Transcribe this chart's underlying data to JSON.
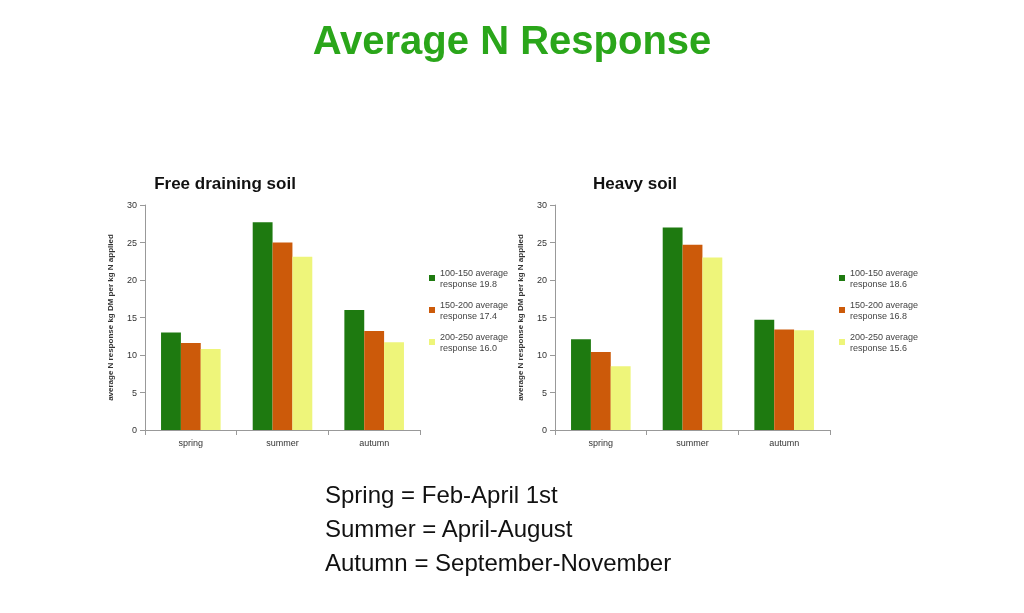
{
  "chart_data": [
    {
      "type": "other",
      "title": "Average N Response",
      "annotations": [
        "Spring = Feb-April 1st",
        "Summer = April-August",
        "Autumn = September-November"
      ]
    },
    {
      "type": "bar",
      "title": "Free draining soil",
      "ylabel": "average N response kg DM per kg N applied",
      "categories": [
        "spring",
        "summer",
        "autumn"
      ],
      "series": [
        {
          "name": "100-150 average response 19.8",
          "color": "#1e7a10",
          "values": [
            13.0,
            27.7,
            16.0
          ]
        },
        {
          "name": "150-200 average response 17.4",
          "color": "#cc5a0a",
          "values": [
            11.6,
            25.0,
            13.2
          ]
        },
        {
          "name": "200-250 average response 16.0",
          "color": "#eef57a",
          "values": [
            10.8,
            23.1,
            11.7
          ]
        }
      ],
      "ylim": [
        0,
        30
      ],
      "yticks": [
        0,
        5,
        10,
        15,
        20,
        25,
        30
      ],
      "grid": false,
      "legend": "right"
    },
    {
      "type": "bar",
      "title": "Heavy soil",
      "ylabel": "average N response kg DM per kg N applied",
      "categories": [
        "spring",
        "summer",
        "autumn"
      ],
      "series": [
        {
          "name": "100-150 average response 18.6",
          "color": "#1e7a10",
          "values": [
            12.1,
            27.0,
            14.7
          ]
        },
        {
          "name": "150-200 average response 16.8",
          "color": "#cc5a0a",
          "values": [
            10.4,
            24.7,
            13.4
          ]
        },
        {
          "name": "200-250 average response 15.6",
          "color": "#eef57a",
          "values": [
            8.5,
            23.0,
            13.3
          ]
        }
      ],
      "ylim": [
        0,
        30
      ],
      "yticks": [
        0,
        5,
        10,
        15,
        20,
        25,
        30
      ],
      "grid": false,
      "legend": "right"
    }
  ]
}
